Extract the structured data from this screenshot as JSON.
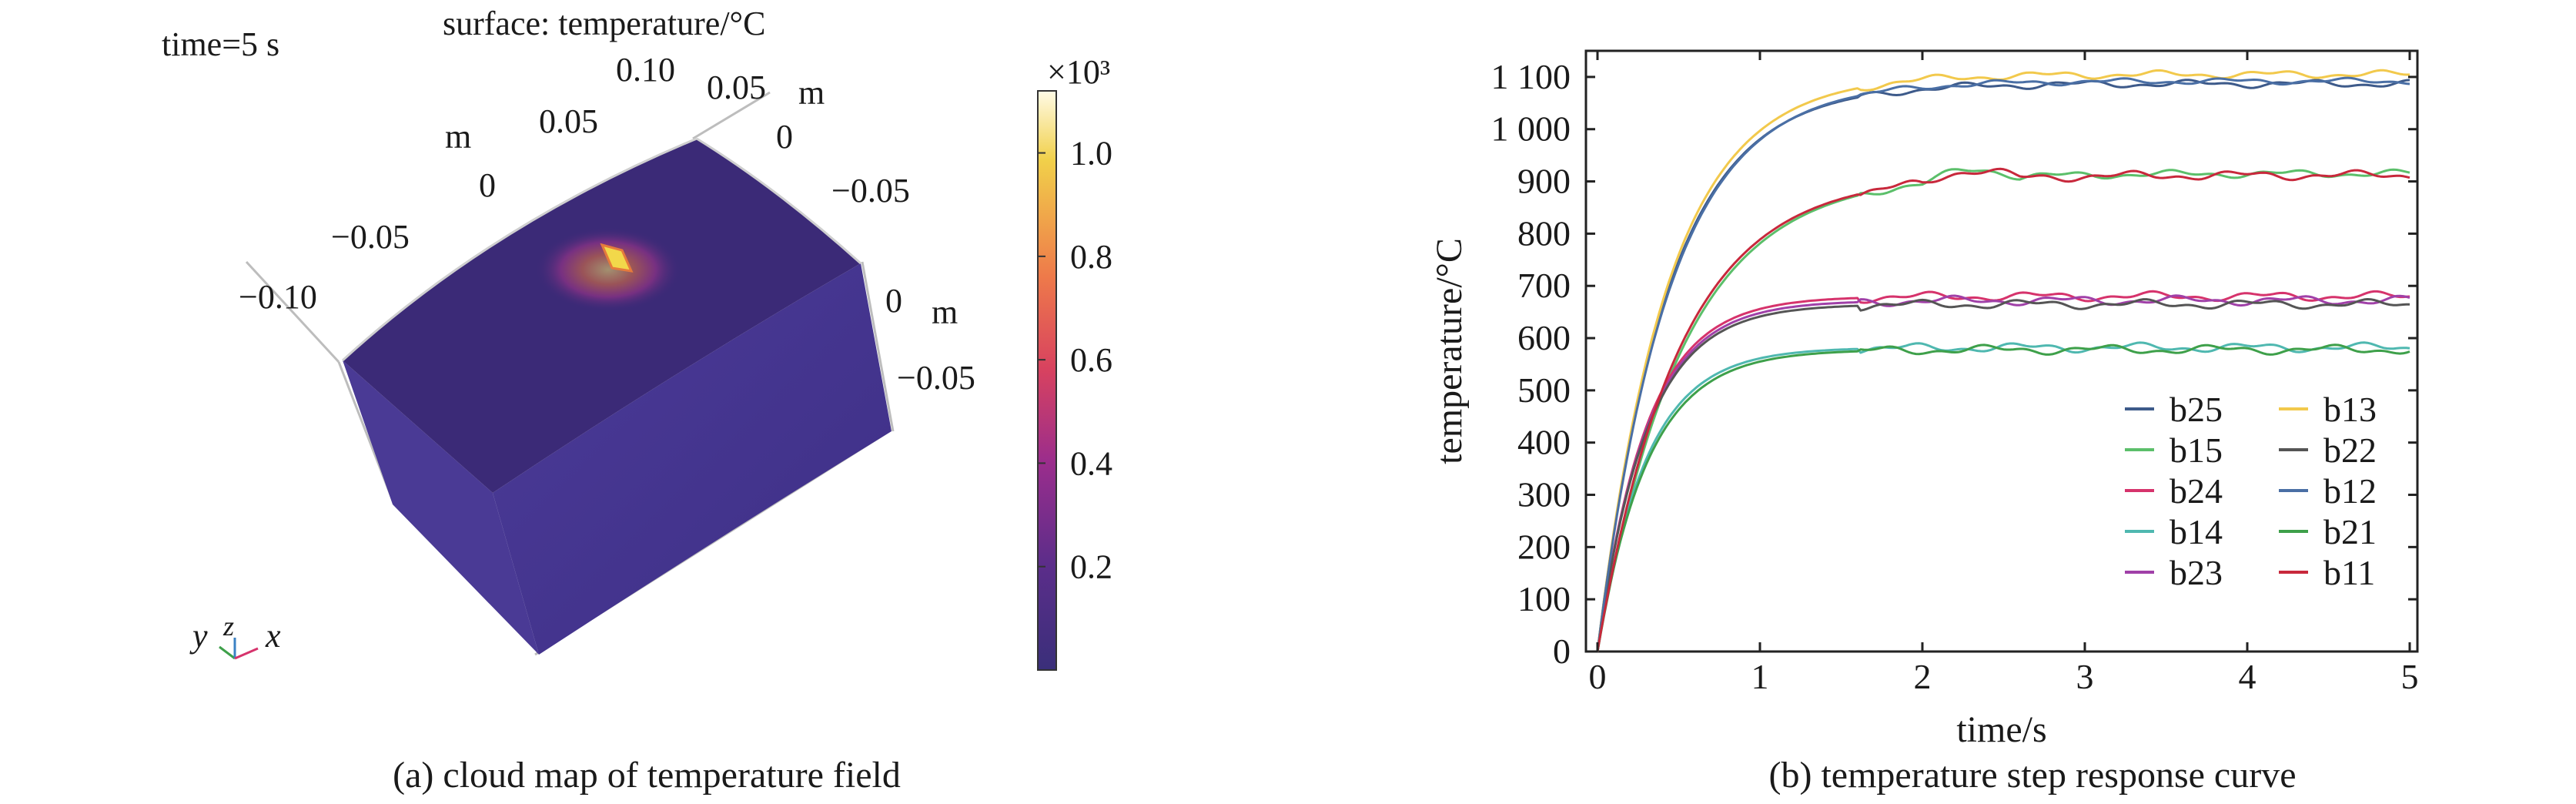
{
  "panel_a": {
    "time_label": "time=5 s",
    "surface_label": "surface: temperature/°C",
    "axis_ticks_x": [
      "−0.10",
      "−0.05",
      "0",
      "0.05",
      "0.10"
    ],
    "axis_ticks_y": [
      "0.05",
      "0",
      "−0.05",
      "−0.05"
    ],
    "axis_unit": "m",
    "colorbar_exponent": "×10³",
    "colorbar_ticks": [
      "1.0",
      "0.8",
      "0.6",
      "0.4",
      "0.2"
    ],
    "triad": {
      "y": "y",
      "z": "z",
      "x": "x"
    },
    "caption": "(a) cloud map of temperature field",
    "colors": {
      "block_top": "#3b2a77",
      "block_side": "#4a3a95",
      "block_front": "#3f2e82",
      "hotspot": "#f0d640",
      "colorbar": [
        "#fffbe6",
        "#f1d04a",
        "#ee7a4a",
        "#d8425f",
        "#9b2d8c",
        "#5b2d8a",
        "#3a2f7a"
      ]
    }
  },
  "chart_data": {
    "type": "line",
    "title": "",
    "xlabel": "time/s",
    "ylabel": "temperature/°C",
    "xlim": [
      0,
      5
    ],
    "ylim": [
      0,
      1150
    ],
    "x_ticks": [
      0,
      1,
      2,
      3,
      4,
      5
    ],
    "x_tick_labels": [
      "0",
      "1",
      "2",
      "3",
      "4",
      "5"
    ],
    "y_ticks": [
      0,
      100,
      200,
      300,
      400,
      500,
      600,
      700,
      800,
      900,
      1000,
      1100
    ],
    "y_tick_labels": [
      "0",
      "100",
      "200",
      "300",
      "400",
      "500",
      "600",
      "700",
      "800",
      "900",
      "1 000",
      "1 100"
    ],
    "grid": false,
    "legend_position": "bottom-right",
    "caption": "(b) temperature step response curve",
    "series": [
      {
        "name": "b25",
        "color": "#3d5a8a",
        "final": 1087,
        "tau": 0.43,
        "amp": 5,
        "phase": 0.0
      },
      {
        "name": "b15",
        "color": "#5bbf6a",
        "final": 915,
        "tau": 0.52,
        "amp": 5,
        "phase": 1.1
      },
      {
        "name": "b24",
        "color": "#d6336c",
        "final": 680,
        "tau": 0.3,
        "amp": 6,
        "phase": 2.3
      },
      {
        "name": "b14",
        "color": "#4fb8b0",
        "final": 582,
        "tau": 0.3,
        "amp": 6,
        "phase": 3.1
      },
      {
        "name": "b23",
        "color": "#a040a8",
        "final": 672,
        "tau": 0.3,
        "amp": 6,
        "phase": 0.7
      },
      {
        "name": "b13",
        "color": "#f2c94c",
        "final": 1105,
        "tau": 0.43,
        "amp": 5,
        "phase": 1.9
      },
      {
        "name": "b22",
        "color": "#555555",
        "final": 665,
        "tau": 0.3,
        "amp": 6,
        "phase": 2.8
      },
      {
        "name": "b12",
        "color": "#4a6fa5",
        "final": 1092,
        "tau": 0.44,
        "amp": 4,
        "phase": 4.2
      },
      {
        "name": "b21",
        "color": "#3ea04a",
        "final": 578,
        "tau": 0.31,
        "amp": 6,
        "phase": 5.0
      },
      {
        "name": "b11",
        "color": "#c8283c",
        "final": 912,
        "tau": 0.5,
        "amp": 6,
        "phase": 3.6
      }
    ]
  }
}
